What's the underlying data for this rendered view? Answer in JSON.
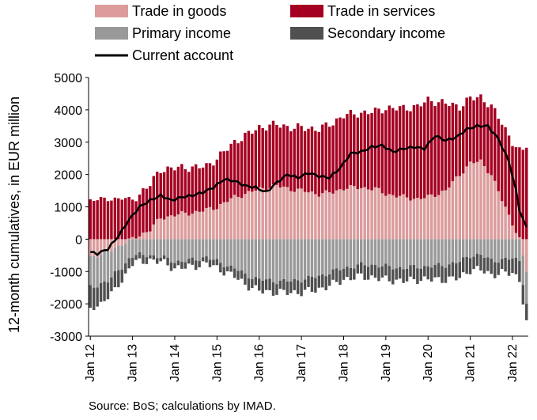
{
  "chart_data": {
    "type": "bar",
    "stacked": true,
    "ylabel": "12-month cumulatives, in EUR million",
    "ylim": [
      -3000,
      5000
    ],
    "yticks": [
      5000,
      4000,
      3000,
      2000,
      1000,
      0,
      -1000,
      -2000,
      -3000
    ],
    "ytick_labels": [
      "5000",
      "4000",
      "3000",
      "2000",
      "1000",
      "0",
      "-1000",
      "-2000",
      "-3000"
    ],
    "xtick_labels": [
      "Jan 12",
      "Jan 13",
      "Jan 14",
      "Jan 15",
      "Jan 16",
      "Jan 17",
      "Jan 18",
      "Jan 19",
      "Jan 20",
      "Jan 21",
      "Jan 22"
    ],
    "x_start": "Jan 12",
    "x_end": "May 22",
    "grid": false,
    "legend_position": "top",
    "source": "Source: BoS; calculations by IMAD.",
    "series": [
      {
        "name": "Trade in goods",
        "color": "#dc9c9c",
        "kind": "bar",
        "anchors": [
          [
            "2012-01",
            -550
          ],
          [
            "2012-06",
            -400
          ],
          [
            "2012-10",
            -150
          ],
          [
            "2013-01",
            0
          ],
          [
            "2013-06",
            300
          ],
          [
            "2013-09",
            650
          ],
          [
            "2014-01",
            750
          ],
          [
            "2014-06",
            820
          ],
          [
            "2014-10",
            900
          ],
          [
            "2015-01",
            1000
          ],
          [
            "2015-06",
            1300
          ],
          [
            "2015-09",
            1400
          ],
          [
            "2016-01",
            1550
          ],
          [
            "2016-06",
            1650
          ],
          [
            "2016-10",
            1550
          ],
          [
            "2017-01",
            1500
          ],
          [
            "2017-06",
            1400
          ],
          [
            "2017-10",
            1450
          ],
          [
            "2018-01",
            1580
          ],
          [
            "2018-06",
            1600
          ],
          [
            "2018-10",
            1550
          ],
          [
            "2019-01",
            1400
          ],
          [
            "2019-06",
            1300
          ],
          [
            "2019-10",
            1250
          ],
          [
            "2020-01",
            1300
          ],
          [
            "2020-06",
            1500
          ],
          [
            "2020-10",
            2000
          ],
          [
            "2021-01",
            2350
          ],
          [
            "2021-04",
            2400
          ],
          [
            "2021-07",
            2000
          ],
          [
            "2021-10",
            1200
          ],
          [
            "2022-01",
            500
          ],
          [
            "2022-03",
            0
          ],
          [
            "2022-05",
            -1000
          ]
        ]
      },
      {
        "name": "Trade in services",
        "color": "#a50021",
        "kind": "bar",
        "anchors": [
          [
            "2012-01",
            1200
          ],
          [
            "2012-06",
            1250
          ],
          [
            "2012-10",
            1250
          ],
          [
            "2013-01",
            1200
          ],
          [
            "2013-06",
            1400
          ],
          [
            "2013-09",
            1500
          ],
          [
            "2014-01",
            1450
          ],
          [
            "2014-06",
            1400
          ],
          [
            "2014-10",
            1350
          ],
          [
            "2015-01",
            1500
          ],
          [
            "2015-06",
            1700
          ],
          [
            "2015-09",
            1800
          ],
          [
            "2016-01",
            1900
          ],
          [
            "2016-06",
            1900
          ],
          [
            "2016-10",
            1900
          ],
          [
            "2017-01",
            1950
          ],
          [
            "2017-06",
            2000
          ],
          [
            "2017-10",
            2150
          ],
          [
            "2018-01",
            2250
          ],
          [
            "2018-06",
            2300
          ],
          [
            "2018-10",
            2400
          ],
          [
            "2019-01",
            2650
          ],
          [
            "2019-06",
            2750
          ],
          [
            "2019-10",
            2850
          ],
          [
            "2020-01",
            3000
          ],
          [
            "2020-06",
            2700
          ],
          [
            "2020-10",
            2100
          ],
          [
            "2021-01",
            2000
          ],
          [
            "2021-04",
            2000
          ],
          [
            "2021-07",
            2100
          ],
          [
            "2021-10",
            2400
          ],
          [
            "2022-01",
            2500
          ],
          [
            "2022-03",
            2700
          ],
          [
            "2022-05",
            2900
          ]
        ]
      },
      {
        "name": "Primary income",
        "color": "#999999",
        "kind": "bar",
        "anchors": [
          [
            "2012-01",
            -950
          ],
          [
            "2012-06",
            -900
          ],
          [
            "2012-10",
            -700
          ],
          [
            "2013-01",
            -500
          ],
          [
            "2013-06",
            -500
          ],
          [
            "2013-09",
            -550
          ],
          [
            "2014-01",
            -700
          ],
          [
            "2014-06",
            -650
          ],
          [
            "2014-10",
            -550
          ],
          [
            "2015-01",
            -700
          ],
          [
            "2015-06",
            -900
          ],
          [
            "2015-09",
            -1100
          ],
          [
            "2016-01",
            -1250
          ],
          [
            "2016-06",
            -1300
          ],
          [
            "2016-10",
            -1300
          ],
          [
            "2017-01",
            -1250
          ],
          [
            "2017-06",
            -1150
          ],
          [
            "2017-10",
            -1000
          ],
          [
            "2018-01",
            -900
          ],
          [
            "2018-06",
            -800
          ],
          [
            "2018-10",
            -800
          ],
          [
            "2019-01",
            -850
          ],
          [
            "2019-06",
            -900
          ],
          [
            "2019-10",
            -850
          ],
          [
            "2020-01",
            -850
          ],
          [
            "2020-06",
            -800
          ],
          [
            "2020-10",
            -700
          ],
          [
            "2021-01",
            -500
          ],
          [
            "2021-04",
            -500
          ],
          [
            "2021-07",
            -650
          ],
          [
            "2021-10",
            -650
          ],
          [
            "2022-01",
            -600
          ],
          [
            "2022-03",
            -650
          ],
          [
            "2022-05",
            -1000
          ]
        ]
      },
      {
        "name": "Secondary income",
        "color": "#505050",
        "kind": "bar",
        "anchors": [
          [
            "2012-01",
            -650
          ],
          [
            "2012-06",
            -550
          ],
          [
            "2012-10",
            -400
          ],
          [
            "2013-01",
            -250
          ],
          [
            "2013-06",
            -150
          ],
          [
            "2013-09",
            -150
          ],
          [
            "2014-01",
            -200
          ],
          [
            "2014-06",
            -200
          ],
          [
            "2014-10",
            -200
          ],
          [
            "2015-01",
            -200
          ],
          [
            "2015-06",
            -250
          ],
          [
            "2015-09",
            -300
          ],
          [
            "2016-01",
            -350
          ],
          [
            "2016-06",
            -350
          ],
          [
            "2016-10",
            -350
          ],
          [
            "2017-01",
            -400
          ],
          [
            "2017-06",
            -400
          ],
          [
            "2017-10",
            -400
          ],
          [
            "2018-01",
            -350
          ],
          [
            "2018-06",
            -350
          ],
          [
            "2018-10",
            -400
          ],
          [
            "2019-01",
            -400
          ],
          [
            "2019-06",
            -400
          ],
          [
            "2019-10",
            -400
          ],
          [
            "2020-01",
            -400
          ],
          [
            "2020-06",
            -450
          ],
          [
            "2020-10",
            -500
          ],
          [
            "2021-01",
            -450
          ],
          [
            "2021-04",
            -450
          ],
          [
            "2021-07",
            -450
          ],
          [
            "2021-10",
            -400
          ],
          [
            "2022-01",
            -450
          ],
          [
            "2022-03",
            -600
          ],
          [
            "2022-05",
            -600
          ]
        ]
      },
      {
        "name": "Current account",
        "color": "#000000",
        "kind": "line",
        "anchors": [
          [
            "2012-01",
            -400
          ],
          [
            "2012-03",
            -450
          ],
          [
            "2012-06",
            -300
          ],
          [
            "2012-09",
            100
          ],
          [
            "2012-12",
            600
          ],
          [
            "2013-03",
            1000
          ],
          [
            "2013-06",
            1200
          ],
          [
            "2013-09",
            1350
          ],
          [
            "2013-12",
            1200
          ],
          [
            "2014-03",
            1300
          ],
          [
            "2014-06",
            1350
          ],
          [
            "2014-09",
            1450
          ],
          [
            "2014-12",
            1600
          ],
          [
            "2015-03",
            1850
          ],
          [
            "2015-06",
            1800
          ],
          [
            "2015-09",
            1650
          ],
          [
            "2015-12",
            1600
          ],
          [
            "2016-03",
            1450
          ],
          [
            "2016-06",
            1750
          ],
          [
            "2016-09",
            2000
          ],
          [
            "2016-12",
            1900
          ],
          [
            "2017-03",
            2050
          ],
          [
            "2017-06",
            1950
          ],
          [
            "2017-09",
            1900
          ],
          [
            "2017-12",
            2200
          ],
          [
            "2018-03",
            2650
          ],
          [
            "2018-06",
            2700
          ],
          [
            "2018-09",
            2850
          ],
          [
            "2018-12",
            2900
          ],
          [
            "2019-03",
            2700
          ],
          [
            "2019-06",
            2800
          ],
          [
            "2019-09",
            2850
          ],
          [
            "2019-12",
            2800
          ],
          [
            "2020-03",
            3200
          ],
          [
            "2020-06",
            3050
          ],
          [
            "2020-09",
            3150
          ],
          [
            "2020-12",
            3400
          ],
          [
            "2021-03",
            3500
          ],
          [
            "2021-06",
            3500
          ],
          [
            "2021-09",
            3100
          ],
          [
            "2021-12",
            2400
          ],
          [
            "2022-02",
            1500
          ],
          [
            "2022-03",
            900
          ],
          [
            "2022-05",
            350
          ]
        ]
      }
    ]
  }
}
